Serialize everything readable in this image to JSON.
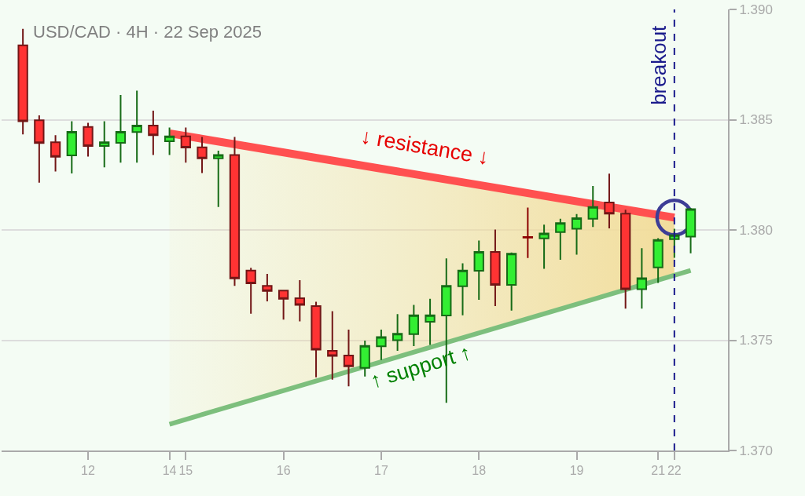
{
  "chart_data": {
    "type": "candlestick",
    "title": "USD/CAD · 4H · 22 Sep 2025",
    "categories": [
      null,
      null,
      null,
      null,
      "12",
      null,
      null,
      null,
      null,
      "14",
      "15",
      null,
      null,
      null,
      null,
      null,
      "16",
      null,
      null,
      null,
      null,
      null,
      "17",
      null,
      null,
      null,
      null,
      null,
      "18",
      null,
      null,
      null,
      null,
      null,
      "19",
      null,
      null,
      null,
      null,
      "21",
      "22",
      null
    ],
    "ohlc": [
      [
        1.38837,
        1.38912,
        1.38433,
        1.38493
      ],
      [
        1.38497,
        1.3852,
        1.38214,
        1.38394
      ],
      [
        1.38398,
        1.3843,
        1.38265,
        1.38332
      ],
      [
        1.38338,
        1.38493,
        1.38256,
        1.38445
      ],
      [
        1.38467,
        1.38486,
        1.38333,
        1.38381
      ],
      [
        1.38381,
        1.38493,
        1.38284,
        1.38398
      ],
      [
        1.38395,
        1.38612,
        1.38305,
        1.38445
      ],
      [
        1.38444,
        1.38632,
        1.38305,
        1.38473
      ],
      [
        1.38473,
        1.38541,
        1.3834,
        1.3843
      ],
      [
        1.38402,
        1.38464,
        1.3834,
        1.38424
      ],
      [
        1.38424,
        1.38464,
        1.38305,
        1.38374
      ],
      [
        1.38375,
        1.38422,
        1.38258,
        1.38325
      ],
      [
        1.38325,
        1.38359,
        1.38104,
        1.3834
      ],
      [
        1.3834,
        1.38422,
        1.37746,
        1.3778
      ],
      [
        1.37816,
        1.37828,
        1.3762,
        1.37758
      ],
      [
        1.37746,
        1.37801,
        1.37676,
        1.37723
      ],
      [
        1.37725,
        1.37728,
        1.37593,
        1.37688
      ],
      [
        1.3769,
        1.37772,
        1.37585,
        1.3766
      ],
      [
        1.37655,
        1.37674,
        1.37332,
        1.37457
      ],
      [
        1.37452,
        1.37632,
        1.37321,
        1.37429
      ],
      [
        1.37431,
        1.37548,
        1.37291,
        1.37382
      ],
      [
        1.37375,
        1.37498,
        1.37335,
        1.37474
      ],
      [
        1.37472,
        1.37548,
        1.3741,
        1.37514
      ],
      [
        1.375,
        1.37618,
        1.37452,
        1.37529
      ],
      [
        1.37528,
        1.3766,
        1.37473,
        1.37613
      ],
      [
        1.37584,
        1.37688,
        1.37479,
        1.37613
      ],
      [
        1.37612,
        1.37871,
        1.37216,
        1.37746
      ],
      [
        1.37745,
        1.37849,
        1.37613,
        1.37816
      ],
      [
        1.37815,
        1.37952,
        1.37683,
        1.379
      ],
      [
        1.379,
        1.38002,
        1.37655,
        1.37751
      ],
      [
        1.37751,
        1.37898,
        1.37634,
        1.37892
      ],
      [
        1.37968,
        1.38101,
        1.37873,
        1.37965
      ],
      [
        1.37962,
        1.38024,
        1.37824,
        1.37984
      ],
      [
        1.3799,
        1.38051,
        1.37865,
        1.38031
      ],
      [
        1.38005,
        1.38072,
        1.37888,
        1.38053
      ],
      [
        1.38051,
        1.38199,
        1.38013,
        1.38104
      ],
      [
        1.38125,
        1.38255,
        1.38007,
        1.38074
      ],
      [
        1.38074,
        1.38092,
        1.37643,
        1.37731
      ],
      [
        1.37731,
        1.37917,
        1.37643,
        1.37781
      ],
      [
        1.3783,
        1.37963,
        1.3776,
        1.37955
      ],
      [
        1.37958,
        1.38005,
        1.37874,
        1.37976
      ],
      [
        1.3797,
        1.381,
        1.37894,
        1.38094
      ]
    ],
    "colors": [
      "#ff3333",
      "#ff3333",
      "#ff3333",
      "#33ee33",
      "#ff3333",
      "#33ee33",
      "#33ee33",
      "#33ee33",
      "#ff3333",
      "#33ee33",
      "#ff3333",
      "#ff3333",
      "#33ee33",
      "#ff3333",
      "#ff3333",
      "#ff3333",
      "#ff3333",
      "#ff3333",
      "#ff3333",
      "#ff3333",
      "#ff3333",
      "#33ee33",
      "#33ee33",
      "#33ee33",
      "#33ee33",
      "#33ee33",
      "#33ee33",
      "#33ee33",
      "#33ee33",
      "#ff3333",
      "#33ee33",
      "#8b0000",
      "#33ee33",
      "#33ee33",
      "#33ee33",
      "#33ee33",
      "#ff3333",
      "#ff3333",
      "#33ee33",
      "#33ee33",
      "#33ee33",
      "#33ee33"
    ],
    "ylim": [
      1.37,
      1.39
    ],
    "yticks": [
      {
        "value": 1.37,
        "label": "1.370"
      },
      1.375,
      {
        "value": 1.38,
        "label": "1.380"
      },
      1.385,
      {
        "value": 1.39,
        "label": "1.390"
      }
    ],
    "grid": "y",
    "series": [
      {
        "type": "line",
        "color": "#ff5050",
        "values": [
          null,
          null,
          null,
          null,
          null,
          null,
          null,
          null,
          null,
          1.38438,
          null,
          null,
          null,
          null,
          null,
          null,
          null,
          null,
          null,
          null,
          null,
          null,
          null,
          null,
          null,
          null,
          null,
          null,
          null,
          null,
          null,
          null,
          null,
          null,
          null,
          null,
          null,
          null,
          null,
          null,
          1.38056,
          null
        ],
        "upper": [
          null,
          null,
          null,
          null,
          null,
          null,
          null,
          null,
          null,
          1.38438,
          null,
          null,
          null,
          null,
          null,
          null,
          null,
          null,
          null,
          null,
          null,
          null,
          null,
          null,
          null,
          null,
          null,
          null,
          null,
          null,
          null,
          null,
          null,
          null,
          null,
          null,
          null,
          null,
          null,
          null,
          1.38056,
          null
        ],
        "lower": [
          null,
          null,
          null,
          null,
          null,
          null,
          null,
          null,
          null,
          1.37119,
          null,
          null,
          null,
          null,
          null,
          null,
          null,
          null,
          null,
          null,
          null,
          null,
          null,
          null,
          null,
          null,
          null,
          null,
          null,
          null,
          null,
          null,
          null,
          null,
          null,
          null,
          null,
          null,
          null,
          null,
          1.37794,
          null
        ]
      },
      {
        "type": "line",
        "color": "#7dbf7d",
        "values": [
          null,
          null,
          null,
          null,
          null,
          null,
          null,
          null,
          null,
          1.37119,
          null,
          null,
          null,
          null,
          null,
          null,
          null,
          null,
          null,
          null,
          null,
          null,
          null,
          null,
          null,
          null,
          null,
          null,
          null,
          null,
          null,
          null,
          null,
          null,
          null,
          null,
          null,
          null,
          null,
          null,
          null,
          1.37816
        ]
      },
      {
        "type": "scatter",
        "color": "#3d3d96",
        "marker": "circle",
        "values": [
          null,
          null,
          null,
          null,
          null,
          null,
          null,
          null,
          null,
          null,
          null,
          null,
          null,
          null,
          null,
          null,
          null,
          null,
          null,
          null,
          null,
          null,
          null,
          null,
          null,
          null,
          null,
          null,
          null,
          null,
          null,
          null,
          null,
          null,
          null,
          null,
          null,
          null,
          null,
          null,
          1.38056,
          null
        ]
      }
    ],
    "ref_lines": [
      {
        "axis": "x",
        "value": "22",
        "label": "breakout",
        "color": "#1a1a8c",
        "line_style": "dashed"
      }
    ],
    "annotations": [
      "↓ resistance ↓",
      "↑ support ↑"
    ]
  }
}
